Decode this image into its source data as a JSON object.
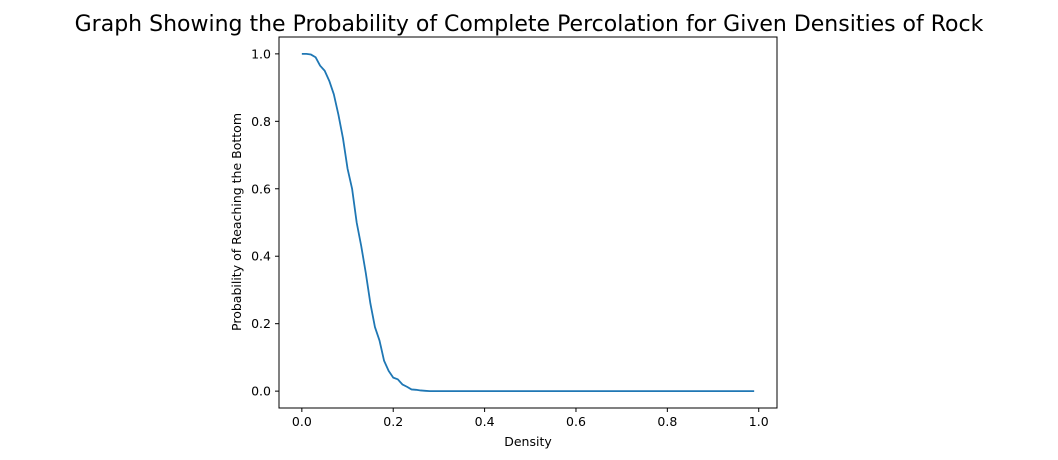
{
  "chart_data": {
    "type": "line",
    "title": "Graph Showing the Probability of Complete Percolation for Given Densities of Rock",
    "xlabel": "Density",
    "ylabel": "Probability of Reaching the Bottom",
    "xlim": [
      -0.05,
      1.04
    ],
    "ylim": [
      -0.05,
      1.05
    ],
    "xticks": [
      0.0,
      0.2,
      0.4,
      0.6,
      0.8,
      1.0
    ],
    "xtick_labels": [
      "0.0",
      "0.2",
      "0.4",
      "0.6",
      "0.8",
      "1.0"
    ],
    "yticks": [
      0.0,
      0.2,
      0.4,
      0.6,
      0.8,
      1.0
    ],
    "ytick_labels": [
      "0.0",
      "0.2",
      "0.4",
      "0.6",
      "0.8",
      "1.0"
    ],
    "grid": false,
    "colors": {
      "line": "#1f77b4"
    },
    "series": [
      {
        "x": [
          0.0,
          0.01,
          0.02,
          0.03,
          0.04,
          0.05,
          0.06,
          0.07,
          0.08,
          0.09,
          0.1,
          0.11,
          0.12,
          0.13,
          0.14,
          0.15,
          0.16,
          0.17,
          0.18,
          0.19,
          0.2,
          0.21,
          0.22,
          0.23,
          0.24,
          0.25,
          0.26,
          0.27,
          0.28,
          0.3,
          0.35,
          0.4,
          0.5,
          0.6,
          0.7,
          0.8,
          0.9,
          0.99
        ],
        "y": [
          1.0,
          1.0,
          0.998,
          0.99,
          0.965,
          0.95,
          0.92,
          0.88,
          0.82,
          0.75,
          0.66,
          0.6,
          0.5,
          0.43,
          0.35,
          0.26,
          0.19,
          0.15,
          0.09,
          0.06,
          0.04,
          0.035,
          0.02,
          0.013,
          0.005,
          0.004,
          0.002,
          0.001,
          0.0,
          0.0,
          0.0,
          0.0,
          0.0,
          0.0,
          0.0,
          0.0,
          0.0,
          0.0
        ]
      }
    ]
  }
}
